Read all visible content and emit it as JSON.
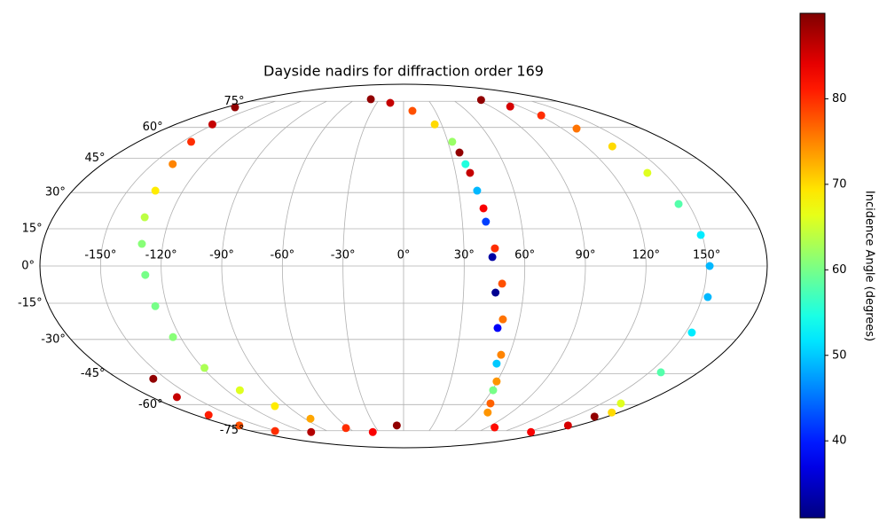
{
  "chart_data": {
    "type": "scatter",
    "projection": "mollweide",
    "title": "Dayside nadirs for diffraction order 169",
    "colorbar_label": "Incidence Angle (degrees)",
    "colormap": "jet",
    "clim": [
      31,
      90
    ],
    "cticks": [
      40,
      50,
      60,
      70,
      80
    ],
    "grid": true,
    "xlim": [
      -180,
      180
    ],
    "ylim": [
      -90,
      90
    ],
    "xticks": [
      {
        "value": -150,
        "label": "-150°"
      },
      {
        "value": -120,
        "label": "-120°"
      },
      {
        "value": -90,
        "label": "-90°"
      },
      {
        "value": -60,
        "label": "-60°"
      },
      {
        "value": -30,
        "label": "-30°"
      },
      {
        "value": 0,
        "label": "0°"
      },
      {
        "value": 30,
        "label": "30°"
      },
      {
        "value": 60,
        "label": "60°"
      },
      {
        "value": 90,
        "label": "90°"
      },
      {
        "value": 120,
        "label": "120°"
      },
      {
        "value": 150,
        "label": "150°"
      }
    ],
    "yticks": [
      {
        "value": -75,
        "label": "-75°"
      },
      {
        "value": -60,
        "label": "-60°"
      },
      {
        "value": -45,
        "label": "-45°"
      },
      {
        "value": -30,
        "label": "-30°"
      },
      {
        "value": -15,
        "label": "-15°"
      },
      {
        "value": 0,
        "label": "0°"
      },
      {
        "value": 15,
        "label": "15°"
      },
      {
        "value": 30,
        "label": "30°"
      },
      {
        "value": 45,
        "label": "45°"
      },
      {
        "value": 60,
        "label": "60°"
      },
      {
        "value": 75,
        "label": "75°"
      }
    ],
    "x": [
      -171,
      -151,
      -144,
      -138,
      -135,
      -133,
      -130.5,
      -128,
      -126,
      -124,
      -119,
      -111,
      -100,
      -85,
      -63,
      -37.5,
      -7,
      -158,
      -162,
      -168.5,
      -169.5,
      -151.6,
      -112.5,
      -40.8,
      -15,
      8.4,
      24.6,
      33,
      37,
      40,
      42,
      44,
      46,
      49.5,
      54.6,
      60.7,
      70.3,
      98,
      155,
      169.6,
      168.8,
      35.4,
      38.3,
      41.7,
      45.4,
      49,
      51.4,
      55.3,
      59.6,
      65.7,
      94.3,
      110,
      121.7,
      130.8,
      137.2,
      140.5,
      144.8,
      149.3,
      151.5,
      152.8,
      153.3,
      157,
      164.3,
      174
    ],
    "y": [
      71.2,
      61.6,
      52.8,
      42.4,
      30.8,
      19.7,
      8.9,
      -3.6,
      -16.2,
      -29,
      -42.4,
      -52.8,
      -60.8,
      -67.7,
      -73.3,
      -75.9,
      -71.7,
      -47.4,
      -56.2,
      -65.6,
      -71.7,
      -75.2,
      -75.9,
      76.4,
      74,
      69.1,
      61.6,
      52.8,
      42.4,
      30.8,
      17.9,
      3.6,
      -10.7,
      -25.2,
      -40.5,
      -52.8,
      -64.2,
      -72.9,
      -75.9,
      -71.7,
      -66.5,
      47.7,
      38.5,
      23.4,
      7.1,
      -7.1,
      -21.6,
      -36.6,
      -48.6,
      -59.4,
      75.9,
      71.7,
      66.5,
      59.4,
      50.6,
      38.5,
      25.2,
      12.5,
      0,
      -12.5,
      -27.1,
      -44.4,
      -59.4,
      -64.2
    ],
    "c": [
      89,
      86,
      80,
      75,
      69,
      64,
      61,
      60,
      60,
      61,
      63,
      66,
      69,
      73,
      80,
      83,
      89,
      89,
      86,
      81,
      78,
      80,
      87,
      89,
      86,
      78,
      70,
      62,
      55,
      49,
      42,
      33,
      32,
      38,
      50,
      60,
      74,
      82,
      83,
      85,
      89,
      89,
      86,
      83,
      80,
      78,
      76,
      75,
      74,
      77,
      89,
      85,
      80,
      76,
      70,
      66,
      58,
      52,
      49,
      49,
      52,
      58,
      66,
      70
    ]
  }
}
